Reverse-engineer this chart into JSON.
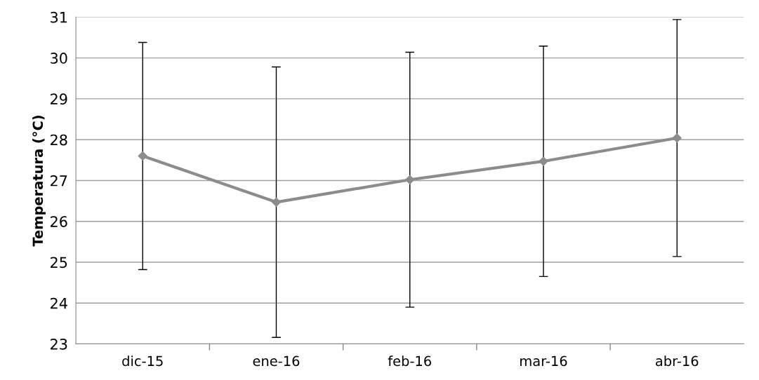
{
  "chart_data": {
    "type": "line",
    "ylabel": "Temperatura (°C)",
    "categories": [
      "dic-15",
      "ene-16",
      "feb-16",
      "mar-16",
      "abr-16"
    ],
    "series": [
      {
        "color": "#8c8c8c",
        "values": [
          27.6,
          26.47,
          27.02,
          27.47,
          28.04
        ],
        "errors": [
          2.78,
          3.31,
          3.12,
          2.82,
          2.9
        ]
      }
    ],
    "ylim": [
      23,
      31
    ],
    "yticks": [
      23,
      24,
      25,
      26,
      27,
      28,
      29,
      30,
      31
    ],
    "grid": "y",
    "marker": "diamond",
    "line_style": "solid"
  }
}
